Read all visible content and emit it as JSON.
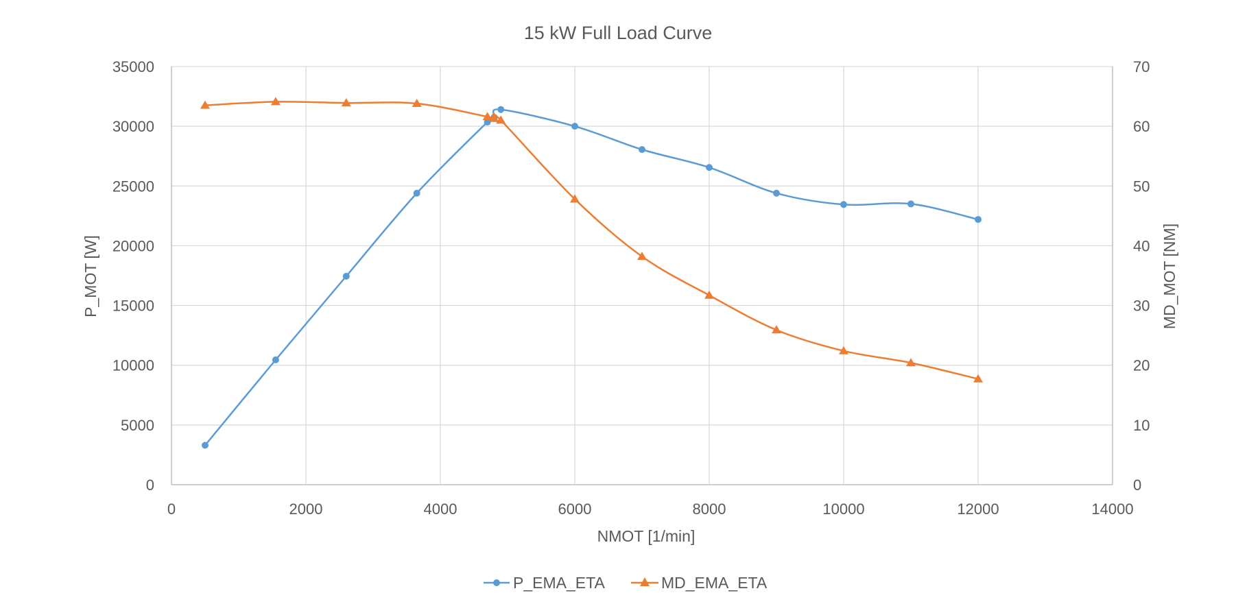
{
  "chart_data": {
    "type": "line",
    "title": "15 kW Full Load Curve",
    "xlabel": "NMOT [1/min]",
    "ylabel": "P_MOT [W]",
    "y2label": "MD_MOT [NM]",
    "xlim": [
      0,
      14000
    ],
    "ylim": [
      0,
      35000
    ],
    "y2lim": [
      0,
      70
    ],
    "x_ticks": [
      0,
      2000,
      4000,
      6000,
      8000,
      10000,
      12000,
      14000
    ],
    "y_ticks": [
      0,
      5000,
      10000,
      15000,
      20000,
      25000,
      30000,
      35000
    ],
    "y2_ticks": [
      0,
      10,
      20,
      30,
      40,
      50,
      60,
      70
    ],
    "grid": true,
    "legend_position": "bottom",
    "series": [
      {
        "name": "P_EMA_ETA",
        "axis": "left",
        "marker": "circle",
        "color": "#5b9bd5",
        "x": [
          500,
          1550,
          2600,
          3650,
          4700,
          4800,
          4900,
          6000,
          7000,
          8000,
          9000,
          10000,
          11000,
          12000
        ],
        "y": [
          3300,
          10450,
          17450,
          24400,
          30350,
          30750,
          31400,
          30000,
          28050,
          26550,
          24400,
          23450,
          23500,
          22200
        ]
      },
      {
        "name": "MD_EMA_ETA",
        "axis": "right",
        "marker": "triangle",
        "color": "#ed7d31",
        "x": [
          500,
          1550,
          2600,
          3650,
          4700,
          4800,
          4900,
          6000,
          7000,
          8000,
          9000,
          10000,
          11000,
          12000
        ],
        "y": [
          63.5,
          64.1,
          63.9,
          63.8,
          61.6,
          61.3,
          61.0,
          47.8,
          38.2,
          31.7,
          25.9,
          22.4,
          20.4,
          17.7
        ]
      }
    ]
  }
}
